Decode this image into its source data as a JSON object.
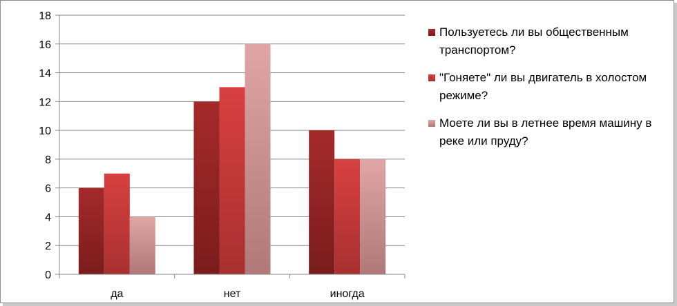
{
  "chart_data": {
    "type": "bar",
    "categories": [
      "да",
      "нет",
      "иногда"
    ],
    "series": [
      {
        "name": "Пользуетесь ли вы общественным транспортом?",
        "values": [
          6,
          12,
          10
        ],
        "color": "#9b2525"
      },
      {
        "name": "\"Гоняете\" ли вы двигатель в холостом режиме?",
        "values": [
          7,
          13,
          8
        ],
        "color": "#d23d3d"
      },
      {
        "name": "Моете ли вы в летнее время машину в реке или пруду?",
        "values": [
          4,
          16,
          8
        ],
        "color": "#dca0a0"
      }
    ],
    "ylim": [
      0,
      18
    ],
    "yticks": [
      "0",
      "2",
      "4",
      "6",
      "8",
      "10",
      "12",
      "14",
      "16",
      "18"
    ],
    "grid": true,
    "legend_position": "right"
  }
}
